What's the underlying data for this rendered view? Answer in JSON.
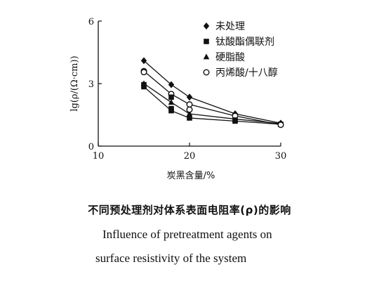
{
  "chart_data": {
    "type": "line",
    "title": "",
    "xlabel": "炭黑含量/%",
    "ylabel": "lg(ρ/(Ω·cm))",
    "xlim": [
      10,
      30
    ],
    "ylim": [
      0,
      6
    ],
    "xticks": [
      "10",
      "20",
      "30"
    ],
    "yticks": [
      "0",
      "3",
      "6"
    ],
    "grid": false,
    "legend_position": "top-right",
    "x": [
      15,
      18,
      20,
      25,
      30
    ],
    "series": [
      {
        "name": "未处理",
        "marker": "diamond",
        "values": [
          4.1,
          2.95,
          2.35,
          1.55,
          1.1
        ]
      },
      {
        "name": "钛酸酯偶联剂",
        "marker": "square",
        "values": [
          2.85,
          1.7,
          1.35,
          1.2,
          1.05
        ]
      },
      {
        "name": "硬脂酸",
        "marker": "triangle",
        "values": [
          3.0,
          2.1,
          1.55,
          1.3,
          1.08
        ]
      },
      {
        "name": "丙烯酸/十八醇",
        "marker": "circle-open",
        "values": [
          3.6,
          2.5,
          2.0,
          1.45,
          1.02
        ]
      }
    ],
    "extra_points": [
      {
        "x": 15,
        "y": 3.55,
        "marker": "circle-open"
      },
      {
        "x": 15,
        "y": 2.95,
        "marker": "square"
      },
      {
        "x": 18,
        "y": 2.35,
        "marker": "square"
      },
      {
        "x": 18,
        "y": 1.8,
        "marker": "square"
      },
      {
        "x": 20,
        "y": 1.75,
        "marker": "circle-open"
      },
      {
        "x": 25,
        "y": 1.25,
        "marker": "square"
      }
    ]
  },
  "caption": {
    "cn": "不同预处理剂对体系表面电阻率(ρ)的影响",
    "en_line1": "Influence of pretreatment agents on",
    "en_line2": "surface resistivity of the system"
  },
  "colors": {
    "ink": "#111111",
    "background": "#ffffff"
  }
}
